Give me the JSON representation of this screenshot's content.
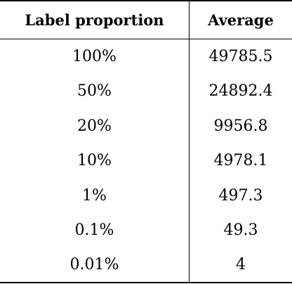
{
  "table": {
    "headers": [
      "Label proportion",
      "Average"
    ],
    "rows": [
      {
        "label_proportion": "100%",
        "average": "49785.5"
      },
      {
        "label_proportion": "50%",
        "average": "24892.4"
      },
      {
        "label_proportion": "20%",
        "average": "9956.8"
      },
      {
        "label_proportion": "10%",
        "average": "4978.1"
      },
      {
        "label_proportion": "1%",
        "average": "497.3"
      },
      {
        "label_proportion": "0.1%",
        "average": "49.3"
      },
      {
        "label_proportion": "0.01%",
        "average": "4"
      }
    ]
  }
}
